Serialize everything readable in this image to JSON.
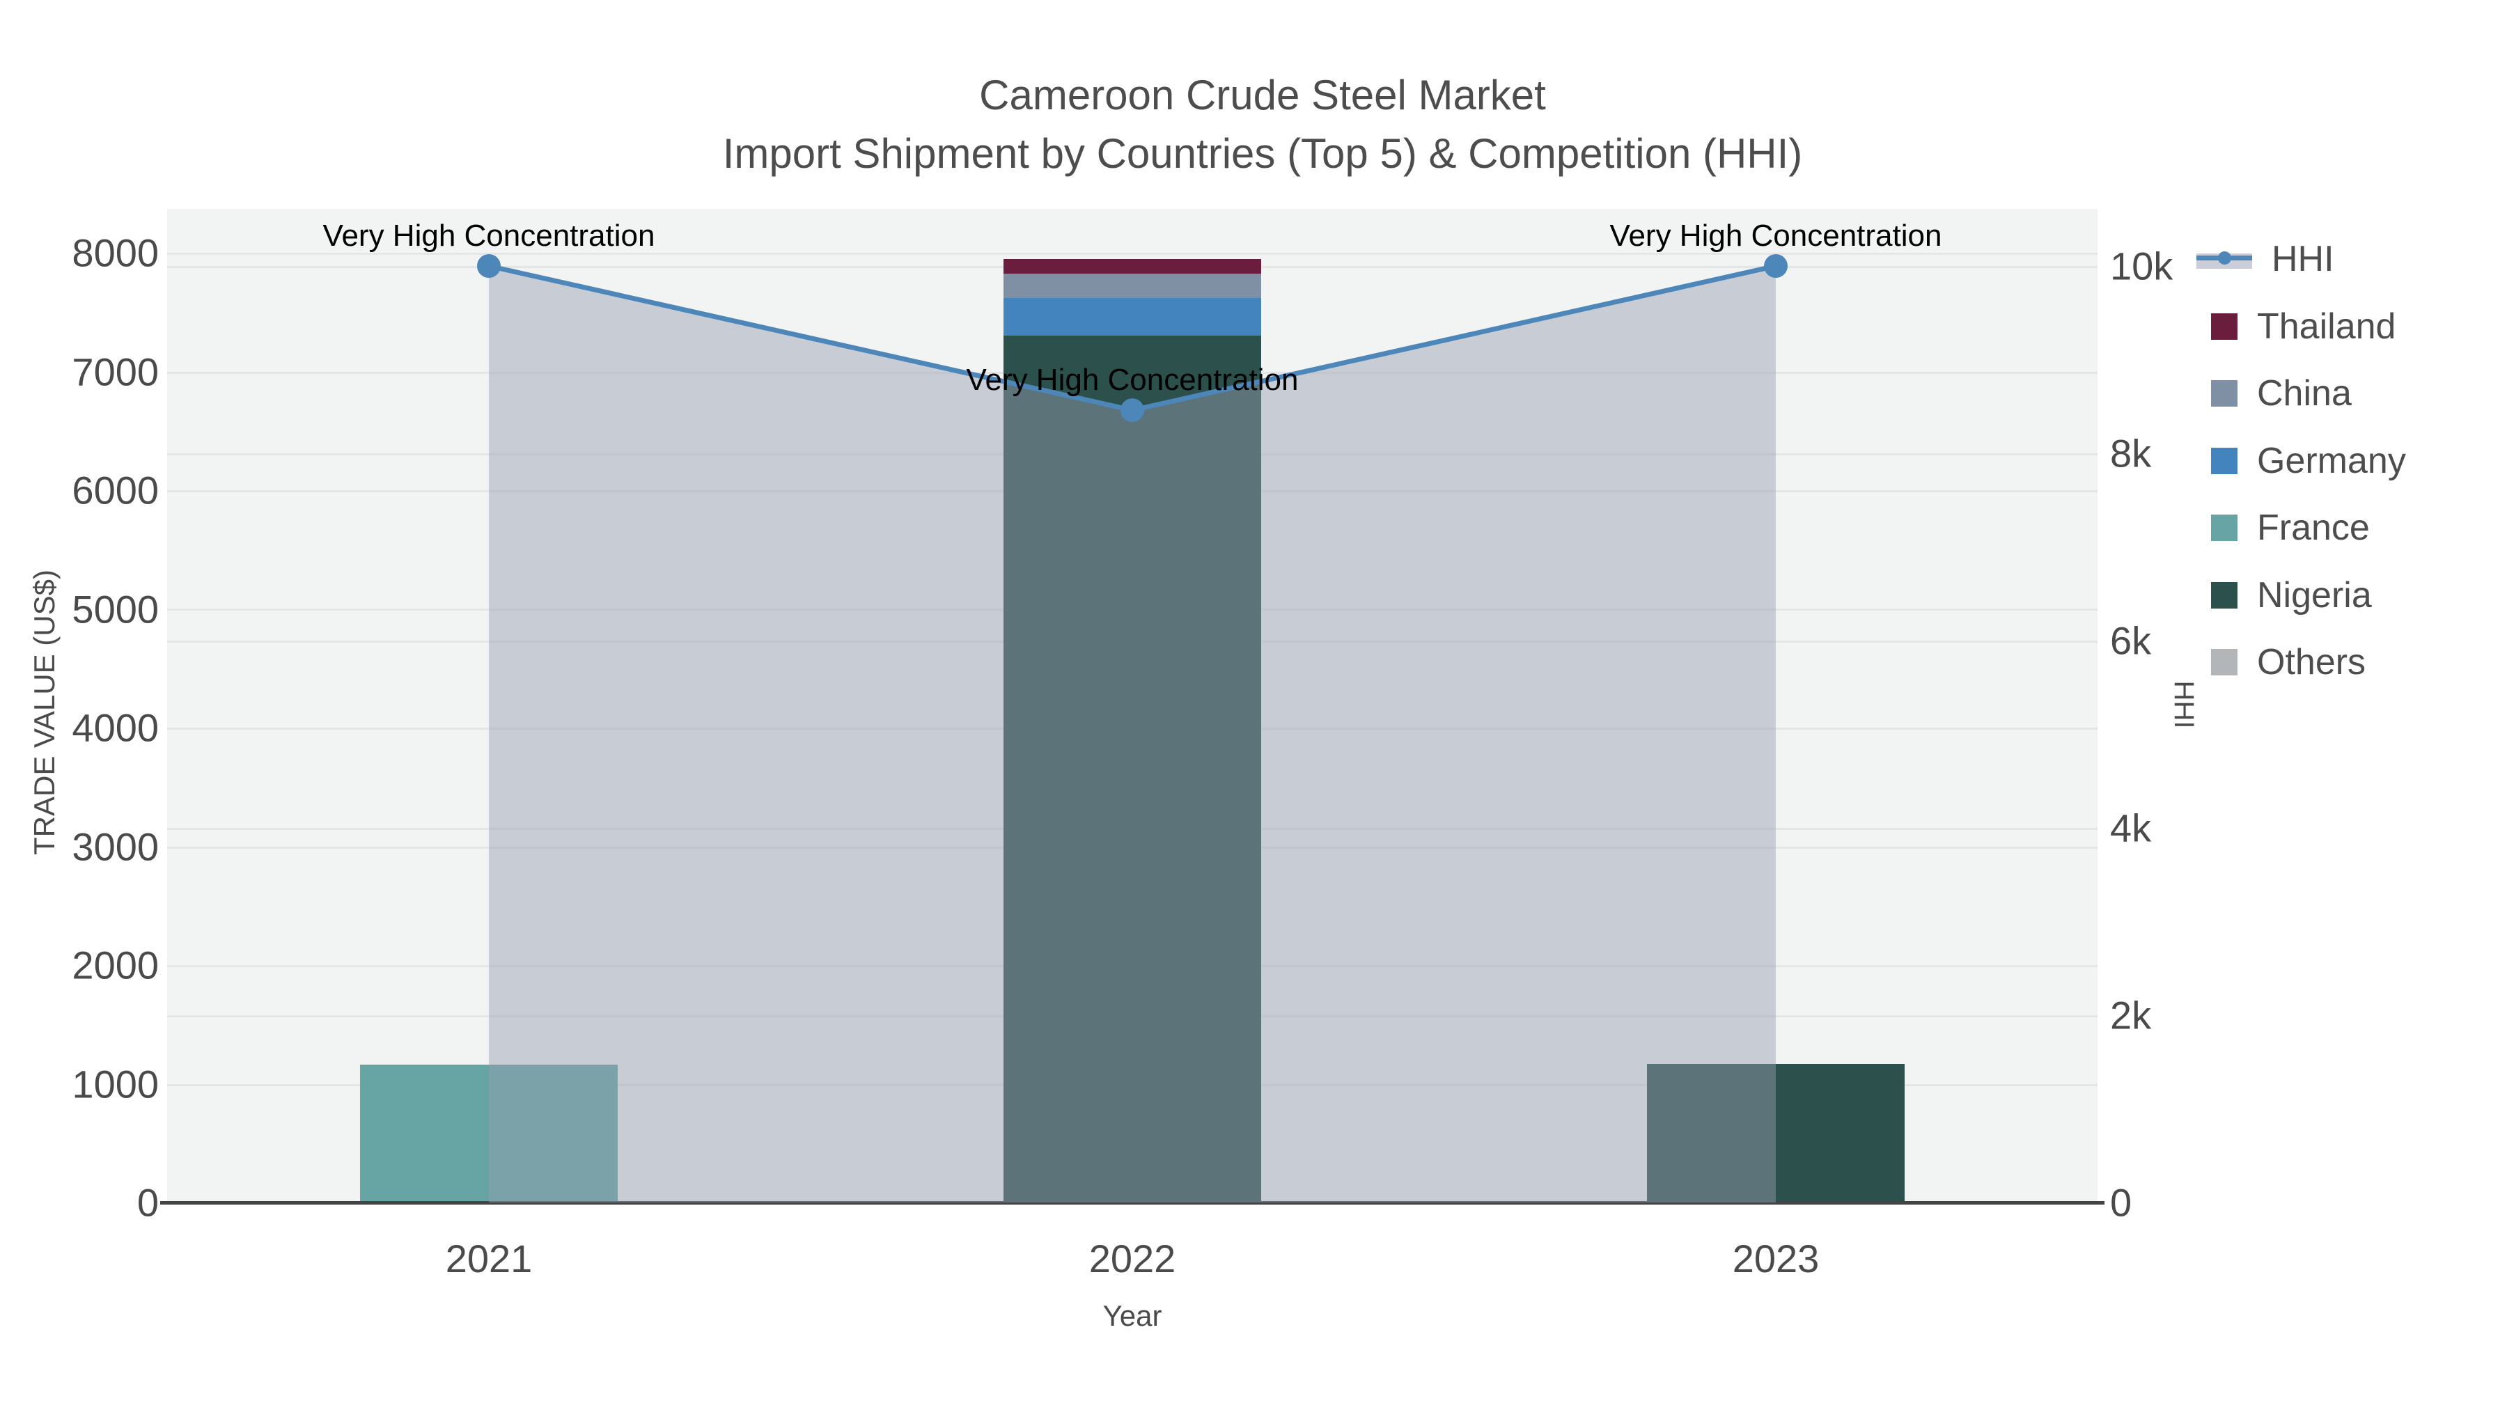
{
  "title": "Cameroon Crude Steel Market",
  "subtitle": "Import Shipment by Countries (Top 5) & Competition (HHI)",
  "colors": {
    "plot_background": "#F2F3F3",
    "gridline": "#E3E5E6",
    "axis_line": "#444444",
    "title_text": "#4d4d4d",
    "tick_text": "#4a4a4a",
    "annotation_text": "#000000",
    "hhi_line": "#4D86B8",
    "hhi_fill": "rgba(148,158,178,0.45)",
    "thailand": "#6B1D3E",
    "china": "#8090A4",
    "germany": "#4384BF",
    "france": "#66A5A3",
    "nigeria": "#2C504C",
    "others": "#B3B6B8"
  },
  "chart_data": {
    "type": "bar+line",
    "categories": [
      "2021",
      "2022",
      "2023"
    ],
    "xlabel": "Year",
    "ylabel_left": "TRADE VALUE (US$)",
    "ylabel_right": "HHI",
    "left_axis": {
      "range": [
        0,
        8370
      ],
      "ticks": [
        0,
        1000,
        2000,
        3000,
        4000,
        5000,
        6000,
        7000,
        8000
      ],
      "tick_labels": [
        "0",
        "1000",
        "2000",
        "3000",
        "4000",
        "5000",
        "6000",
        "7000",
        "8000"
      ]
    },
    "right_axis": {
      "range": [
        0,
        10610
      ],
      "ticks": [
        0,
        2000,
        4000,
        6000,
        8000,
        10000
      ],
      "tick_labels": [
        "0",
        "2k",
        "4k",
        "6k",
        "8k",
        "10k"
      ]
    },
    "bar_series": [
      {
        "name": "Thailand",
        "color_key": "thailand",
        "values": [
          0,
          125,
          0
        ]
      },
      {
        "name": "China",
        "color_key": "china",
        "values": [
          0,
          205,
          0
        ]
      },
      {
        "name": "Germany",
        "color_key": "germany",
        "values": [
          0,
          320,
          0
        ]
      },
      {
        "name": "France",
        "color_key": "france",
        "values": [
          1160,
          0,
          0
        ]
      },
      {
        "name": "Nigeria",
        "color_key": "nigeria",
        "values": [
          0,
          7300,
          1170
        ]
      },
      {
        "name": "Others",
        "color_key": "others",
        "values": [
          0,
          0,
          0
        ]
      }
    ],
    "stack_order": [
      "Others",
      "Nigeria",
      "France",
      "Germany",
      "China",
      "Thailand"
    ],
    "line_series": {
      "name": "HHI",
      "axis": "right",
      "values": [
        10000,
        8460,
        10000
      ],
      "color_key": "hhi_line",
      "fill_color_key": "hhi_fill",
      "filled": true,
      "markers": true
    },
    "annotations": [
      {
        "category": "2021",
        "text": "Very High Concentration"
      },
      {
        "category": "2022",
        "text": "Very High Concentration"
      },
      {
        "category": "2023",
        "text": "Very High Concentration"
      }
    ],
    "legend": {
      "position": "right",
      "entries": [
        "HHI",
        "Thailand",
        "China",
        "Germany",
        "France",
        "Nigeria",
        "Others"
      ]
    },
    "grid": true
  }
}
